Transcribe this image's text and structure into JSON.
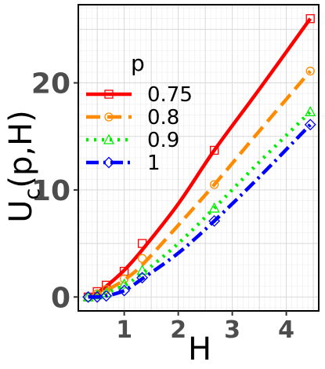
{
  "chart_data": {
    "type": "line",
    "title": "",
    "xlabel": "H",
    "ylabel_main": "U",
    "ylabel_sub": "c",
    "ylabel_tail": "(p,H)",
    "xlim": [
      0.15,
      4.6
    ],
    "ylim": [
      -1.3,
      27.3
    ],
    "x_ticks": [
      1,
      2,
      3,
      4
    ],
    "y_ticks": [
      0,
      10,
      20
    ],
    "grid": true,
    "legend": {
      "title": "p",
      "position": "top-left"
    },
    "series": [
      {
        "name": "0.75",
        "color": "#ff0000",
        "dash": "solid",
        "marker": "square",
        "points": [
          [
            0.333,
            0
          ],
          [
            0.5,
            0.5
          ],
          [
            0.667,
            1.1
          ],
          [
            1,
            2.4
          ],
          [
            1.333,
            5
          ],
          [
            2.667,
            13.7
          ],
          [
            4.444,
            26
          ]
        ],
        "curve": [
          [
            0.333,
            0
          ],
          [
            0.5,
            0.4
          ],
          [
            0.667,
            1.0
          ],
          [
            1,
            2.5
          ],
          [
            1.333,
            4.4
          ],
          [
            2,
            8.7
          ],
          [
            2.667,
            13.7
          ],
          [
            3.5,
            19.4
          ],
          [
            4.444,
            26
          ]
        ]
      },
      {
        "name": "0.8",
        "color": "#ff8c00",
        "dash": "long-dash",
        "marker": "circle",
        "points": [
          [
            0.333,
            0
          ],
          [
            0.5,
            0.3
          ],
          [
            0.667,
            0.7
          ],
          [
            1,
            1.7
          ],
          [
            1.333,
            3.6
          ],
          [
            2.667,
            10.5
          ],
          [
            4.444,
            21.1
          ]
        ],
        "curve": [
          [
            0.333,
            0
          ],
          [
            0.5,
            0.2
          ],
          [
            0.667,
            0.6
          ],
          [
            1,
            1.6
          ],
          [
            1.333,
            3.0
          ],
          [
            2,
            6.7
          ],
          [
            2.667,
            10.5
          ],
          [
            3.5,
            15.5
          ],
          [
            4.444,
            21.1
          ]
        ]
      },
      {
        "name": "0.9",
        "color": "#00ee00",
        "dash": "dotted",
        "marker": "triangle",
        "points": [
          [
            0.333,
            0
          ],
          [
            0.5,
            0.2
          ],
          [
            0.667,
            0.4
          ],
          [
            1,
            1.2
          ],
          [
            1.333,
            2.5
          ],
          [
            2.667,
            8.3
          ],
          [
            4.444,
            17.3
          ]
        ],
        "curve": [
          [
            0.333,
            0
          ],
          [
            0.5,
            0.1
          ],
          [
            0.667,
            0.4
          ],
          [
            1,
            1.1
          ],
          [
            1.333,
            2.2
          ],
          [
            2,
            5
          ],
          [
            2.667,
            8.3
          ],
          [
            3.5,
            12.6
          ],
          [
            4.444,
            17.3
          ]
        ]
      },
      {
        "name": "1",
        "color": "#0000ff",
        "dash": "dot-dash",
        "marker": "diamond",
        "points": [
          [
            0.333,
            0
          ],
          [
            0.5,
            0
          ],
          [
            0.667,
            0.1
          ],
          [
            1,
            0.6
          ],
          [
            1.333,
            1.8
          ],
          [
            2.667,
            7.1
          ],
          [
            4.444,
            16.1
          ]
        ],
        "curve": [
          [
            0.333,
            0
          ],
          [
            0.5,
            0
          ],
          [
            0.667,
            0.1
          ],
          [
            1,
            0.6
          ],
          [
            1.333,
            1.7
          ],
          [
            2,
            4.1
          ],
          [
            2.667,
            7.1
          ],
          [
            3.5,
            11.2
          ],
          [
            4.444,
            16.1
          ]
        ]
      }
    ]
  }
}
